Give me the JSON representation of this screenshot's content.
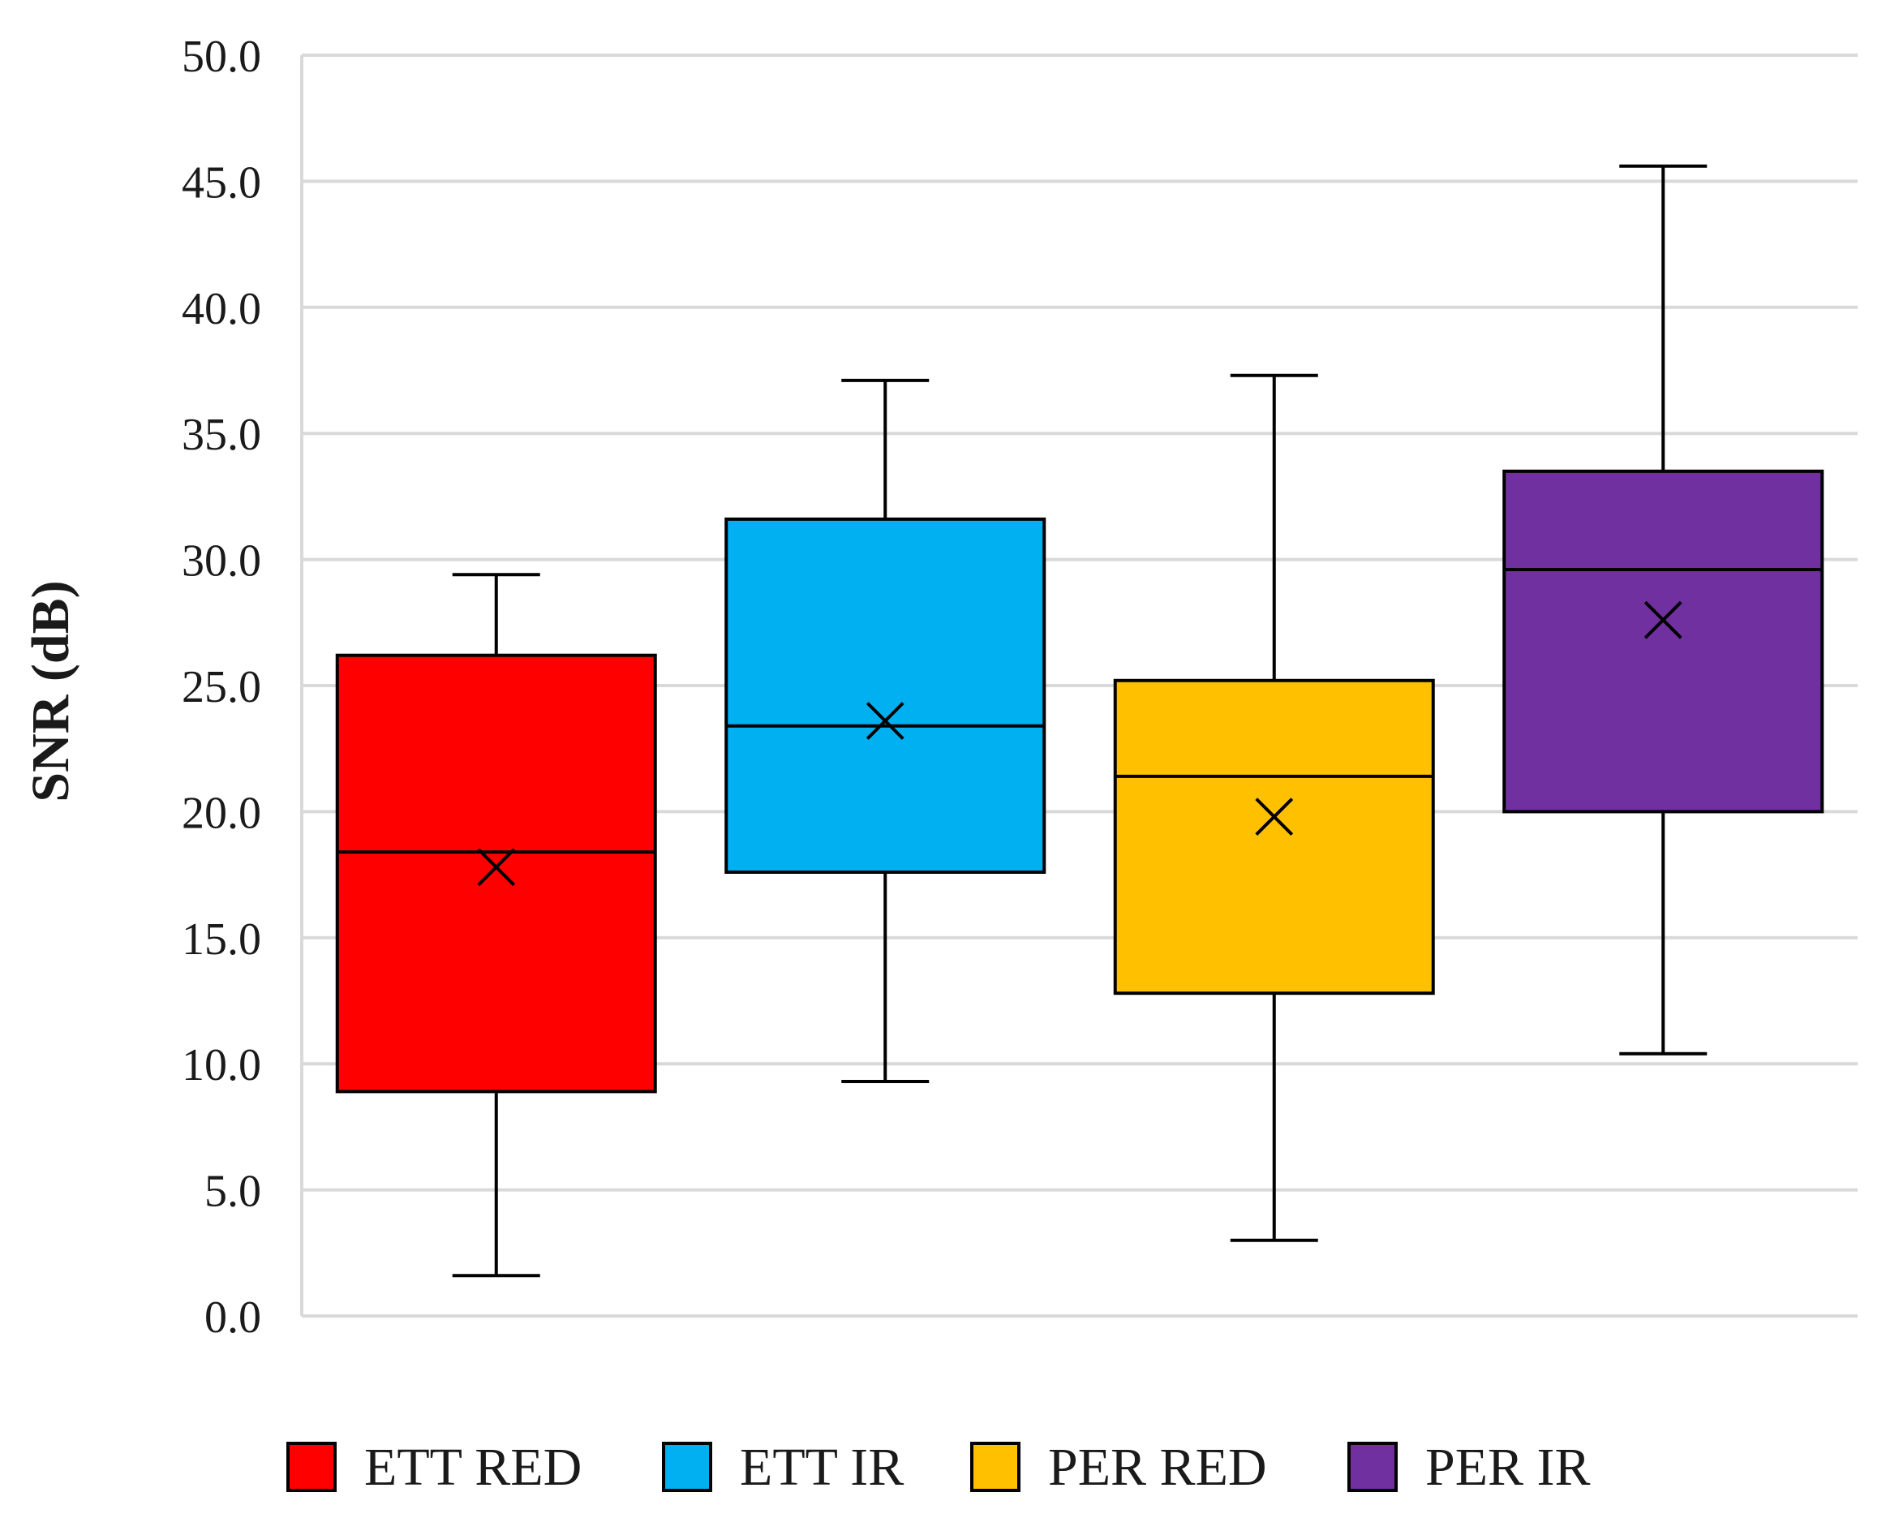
{
  "chart_data": {
    "type": "boxplot",
    "title": "",
    "xlabel": "",
    "ylabel": "SNR (dB)",
    "ylim": [
      0,
      50
    ],
    "y_tick_step": 5,
    "y_tick_labels": [
      "0.0",
      "5.0",
      "10.0",
      "15.0",
      "20.0",
      "25.0",
      "30.0",
      "35.0",
      "40.0",
      "45.0",
      "50.0"
    ],
    "grid": true,
    "legend_position": "bottom",
    "series": [
      {
        "name": "ETT RED",
        "color": "#ff0000",
        "min": 1.6,
        "q1": 8.9,
        "median": 18.4,
        "mean": 17.8,
        "q3": 26.2,
        "max": 29.4
      },
      {
        "name": "ETT IR",
        "color": "#00b0f0",
        "min": 9.3,
        "q1": 17.6,
        "median": 23.4,
        "mean": 23.6,
        "q3": 31.6,
        "max": 37.1
      },
      {
        "name": "PER RED",
        "color": "#ffc000",
        "min": 3.0,
        "q1": 12.8,
        "median": 21.4,
        "mean": 19.8,
        "q3": 25.2,
        "max": 37.3
      },
      {
        "name": "PER IR",
        "color": "#7030a0",
        "min": 10.4,
        "q1": 20.0,
        "median": 29.6,
        "mean": 27.6,
        "q3": 33.5,
        "max": 45.6
      }
    ]
  }
}
